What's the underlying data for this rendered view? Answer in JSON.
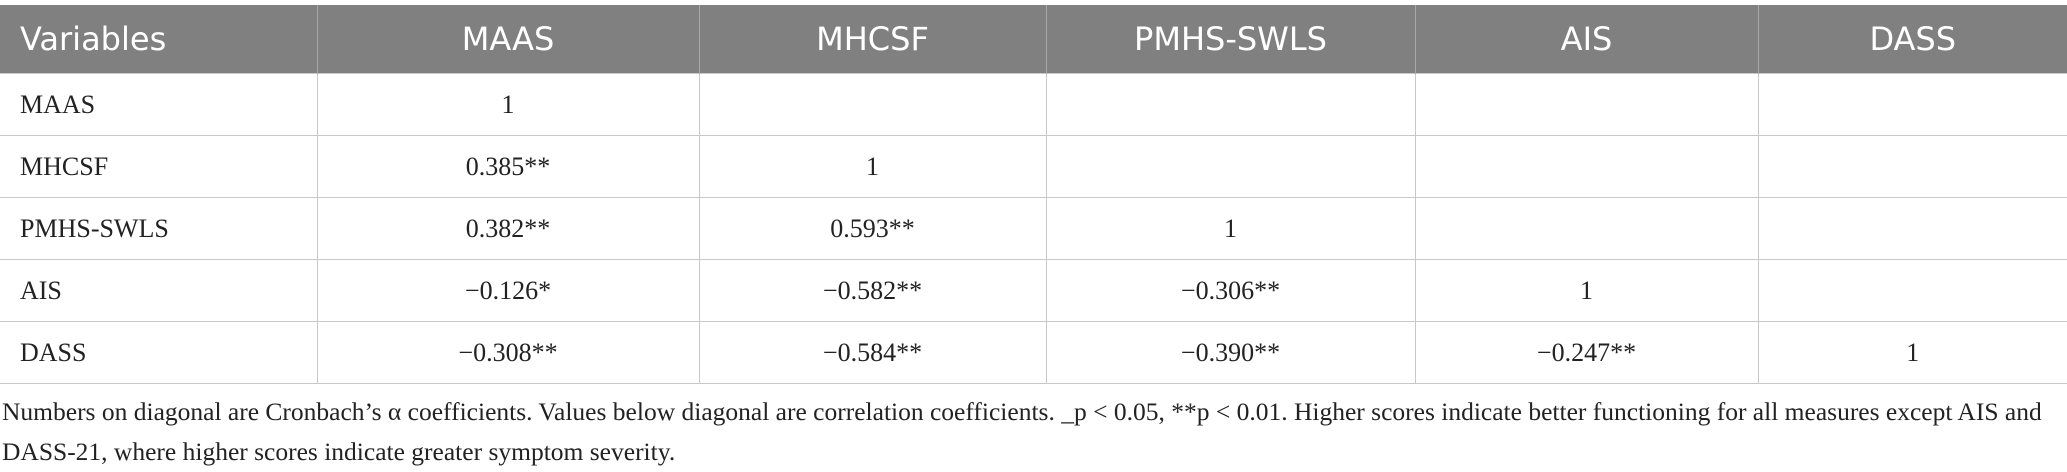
{
  "table": {
    "header": [
      "Variables",
      "MAAS",
      "MHCSF",
      "PMHS-SWLS",
      "AIS",
      "DASS"
    ],
    "rows": [
      [
        "MAAS",
        "1",
        null,
        null,
        null,
        null
      ],
      [
        "MHCSF",
        "0.385**",
        "1",
        null,
        null,
        null
      ],
      [
        "PMHS-SWLS",
        "0.382**",
        "0.593**",
        "1",
        null,
        null
      ],
      [
        "AIS",
        "−0.126*",
        "−0.582**",
        "−0.306**",
        "1",
        null
      ],
      [
        "DASS",
        "−0.308**",
        "−0.584**",
        "−0.390**",
        "−0.247**",
        "1"
      ]
    ]
  },
  "footnote": "Numbers on diagonal are Cronbach’s α coefficients. Values below diagonal are correlation coefficients. _p < 0.05, **p < 0.01. Higher scores indicate better functioning for all measures except AIS and DASS-21, where higher scores indicate greater symptom severity."
}
